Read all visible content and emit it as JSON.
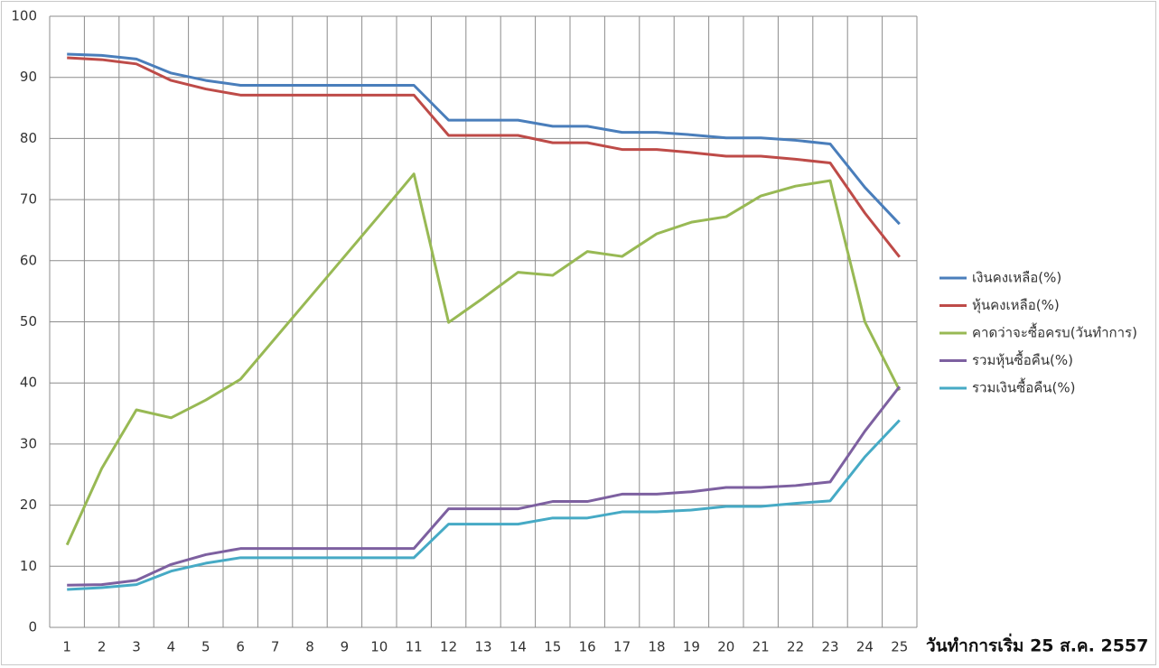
{
  "chart_data": {
    "type": "line",
    "x_label": "วันทำการเริ่ม 25 ส.ค. 2557",
    "categories": [
      "1",
      "2",
      "3",
      "4",
      "5",
      "6",
      "7",
      "8",
      "9",
      "10",
      "11",
      "12",
      "13",
      "14",
      "15",
      "16",
      "17",
      "18",
      "19",
      "20",
      "21",
      "22",
      "23",
      "24",
      "25"
    ],
    "ylim": [
      0,
      100
    ],
    "yticks": [
      0,
      10,
      20,
      30,
      40,
      50,
      60,
      70,
      80,
      90,
      100
    ],
    "grid": true,
    "legend": "right",
    "series": [
      {
        "name": "เงินคงเหลือ(%)",
        "color": "#4a7ebb",
        "values": [
          93.8,
          93.6,
          93.0,
          90.7,
          89.5,
          88.7,
          88.7,
          88.7,
          88.7,
          88.7,
          88.7,
          83.0,
          83.0,
          83.0,
          82.0,
          82.0,
          81.0,
          81.0,
          80.6,
          80.1,
          80.1,
          79.7,
          79.1,
          72.0,
          66.0
        ]
      },
      {
        "name": "หุ้นคงเหลือ(%)",
        "color": "#be4b48",
        "values": [
          93.2,
          92.9,
          92.2,
          89.5,
          88.1,
          87.1,
          87.1,
          87.1,
          87.1,
          87.1,
          87.1,
          80.5,
          80.5,
          80.5,
          79.3,
          79.3,
          78.2,
          78.2,
          77.7,
          77.1,
          77.1,
          76.6,
          76.0,
          67.8,
          60.6
        ]
      },
      {
        "name": "คาดว่าจะซื้อครบ(วันทำการ)",
        "color": "#98b954",
        "values": [
          13.5,
          26.0,
          35.6,
          34.3,
          37.2,
          40.6,
          47.3,
          54.0,
          60.7,
          67.4,
          74.2,
          49.9,
          53.9,
          58.1,
          57.6,
          61.5,
          60.7,
          64.4,
          66.3,
          67.2,
          70.6,
          72.2,
          73.1,
          50.0,
          38.8
        ]
      },
      {
        "name": "รวมหุ้นซื้อคืน(%)",
        "color": "#7d60a0",
        "values": [
          6.9,
          7.0,
          7.7,
          10.3,
          11.9,
          12.9,
          12.9,
          12.9,
          12.9,
          12.9,
          12.9,
          19.4,
          19.4,
          19.4,
          20.6,
          20.6,
          21.8,
          21.8,
          22.2,
          22.9,
          22.9,
          23.2,
          23.8,
          32.1,
          39.4
        ]
      },
      {
        "name": "รวมเงินซื้อคืน(%)",
        "color": "#46aac5",
        "values": [
          6.2,
          6.5,
          7.0,
          9.2,
          10.5,
          11.4,
          11.4,
          11.4,
          11.4,
          11.4,
          11.4,
          16.9,
          16.9,
          16.9,
          17.9,
          17.9,
          18.9,
          18.9,
          19.2,
          19.8,
          19.8,
          20.3,
          20.7,
          27.9,
          33.9
        ]
      }
    ]
  }
}
